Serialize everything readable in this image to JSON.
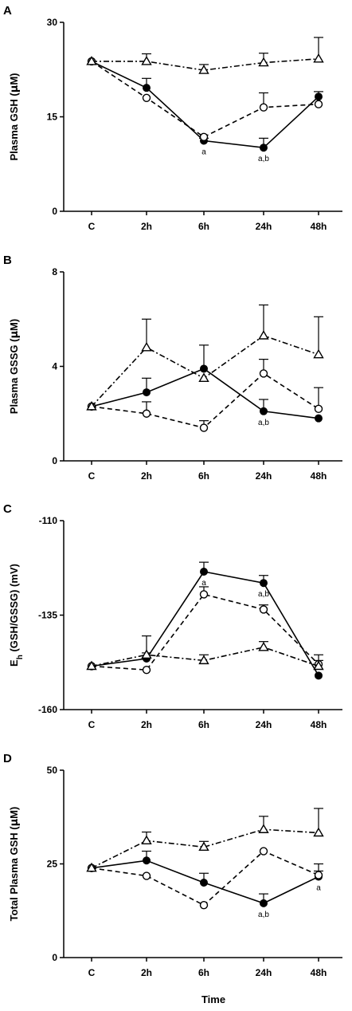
{
  "chart_data": [
    {
      "type": "line",
      "panel_letter": "A",
      "ylabel": "Plasma GSH (µM)",
      "ylabel_main": "Plasma GSH (",
      "ylabel_unit_mu": "µ",
      "ylabel_unit_rest": "M)",
      "ylim": [
        0,
        30
      ],
      "yticks": [
        "0",
        "15",
        "30"
      ],
      "categories": [
        "C",
        "2h",
        "6h",
        "24h",
        "48h"
      ],
      "series": [
        {
          "marker": "filled-circle",
          "line": "solid",
          "values": [
            23.8,
            19.6,
            11.2,
            10.1,
            18.2
          ],
          "errors": [
            0,
            1.5,
            0.4,
            1.5,
            0.8
          ]
        },
        {
          "marker": "open-circle",
          "line": "dashed",
          "values": [
            23.8,
            18.0,
            11.8,
            16.5,
            17.0
          ],
          "errors": [
            0,
            0,
            0,
            2.3,
            0
          ]
        },
        {
          "marker": "open-triangle",
          "line": "dash-dot",
          "values": [
            23.8,
            23.8,
            22.4,
            23.6,
            24.2
          ],
          "errors": [
            0,
            1.2,
            0.9,
            1.5,
            3.4
          ]
        }
      ],
      "annotations": [
        {
          "category": "6h",
          "text": "a"
        },
        {
          "category": "24h",
          "text": "a,b"
        }
      ]
    },
    {
      "type": "line",
      "panel_letter": "B",
      "ylabel": "Plasma GSSG (µM)",
      "ylabel_main": "Plasma GSSG (",
      "ylabel_unit_mu": "µ",
      "ylabel_unit_rest": "M)",
      "ylim": [
        0,
        8
      ],
      "yticks": [
        "0",
        "4",
        "8"
      ],
      "categories": [
        "C",
        "2h",
        "6h",
        "24h",
        "48h"
      ],
      "series": [
        {
          "marker": "filled-circle",
          "line": "solid",
          "values": [
            2.3,
            2.9,
            3.9,
            2.1,
            1.8
          ],
          "errors": [
            0,
            0.6,
            1.0,
            0.5,
            0
          ]
        },
        {
          "marker": "open-circle",
          "line": "dashed",
          "values": [
            2.3,
            2.0,
            1.4,
            3.7,
            2.2
          ],
          "errors": [
            0,
            0.5,
            0.3,
            0.6,
            0.9
          ]
        },
        {
          "marker": "open-triangle",
          "line": "dash-dot",
          "values": [
            2.3,
            4.8,
            3.5,
            5.3,
            4.5
          ],
          "errors": [
            0,
            1.2,
            0,
            1.3,
            1.6
          ]
        }
      ],
      "annotations": [
        {
          "category": "24h",
          "text": "a,b"
        }
      ]
    },
    {
      "type": "line",
      "panel_letter": "C",
      "ylabel": "Eh (GSH/GSSG) (mV)",
      "ylabel_main": "E",
      "ylabel_sub": "h",
      "ylabel_rest": " (GSH/GSSG) (mV)",
      "ylim": [
        -160,
        -110
      ],
      "yticks": [
        "-160",
        "-135",
        "-110"
      ],
      "categories": [
        "C",
        "2h",
        "6h",
        "24h",
        "48h"
      ],
      "series": [
        {
          "marker": "filled-circle",
          "line": "solid",
          "values": [
            -148.5,
            -146.5,
            -123.5,
            -126.5,
            -151.0
          ],
          "errors": [
            0,
            1.5,
            2.5,
            2.0,
            0
          ]
        },
        {
          "marker": "open-circle",
          "line": "dashed",
          "values": [
            -148.5,
            -149.5,
            -129.5,
            -133.5,
            -148.0
          ],
          "errors": [
            0,
            0,
            2.0,
            1.2,
            2.5
          ]
        },
        {
          "marker": "open-triangle",
          "line": "dash-dot",
          "values": [
            -148.5,
            -145.5,
            -147.0,
            -143.5,
            -148.5
          ],
          "errors": [
            0,
            5.0,
            1.5,
            1.5,
            1.5
          ]
        }
      ],
      "annotations": [
        {
          "category": "6h",
          "text": "a"
        },
        {
          "category": "24h",
          "text": "a,b"
        }
      ]
    },
    {
      "type": "line",
      "panel_letter": "D",
      "ylabel": "Total Plasma GSH (µM)",
      "ylabel_main": "Total Plasma GSH (",
      "ylabel_unit_mu": "µ",
      "ylabel_unit_rest": "M)",
      "ylim": [
        0,
        50
      ],
      "yticks": [
        "0",
        "25",
        "50"
      ],
      "categories": [
        "C",
        "2h",
        "6h",
        "24h",
        "48h"
      ],
      "series": [
        {
          "marker": "filled-circle",
          "line": "solid",
          "values": [
            23.9,
            25.9,
            20.0,
            14.5,
            21.6
          ],
          "errors": [
            0,
            2.5,
            2.5,
            2.5,
            1.5
          ]
        },
        {
          "marker": "open-circle",
          "line": "dashed",
          "values": [
            23.9,
            21.8,
            14.0,
            28.4,
            22.0
          ],
          "errors": [
            0,
            0,
            0,
            0,
            3.0
          ]
        },
        {
          "marker": "open-triangle",
          "line": "dash-dot",
          "values": [
            23.9,
            31.2,
            29.5,
            34.2,
            33.3
          ],
          "errors": [
            0,
            2.3,
            1.5,
            3.5,
            6.5
          ]
        }
      ],
      "annotations": [
        {
          "category": "24h",
          "text": "a,b"
        },
        {
          "category": "48h",
          "text": "a"
        }
      ]
    }
  ],
  "xlabel": "Time"
}
